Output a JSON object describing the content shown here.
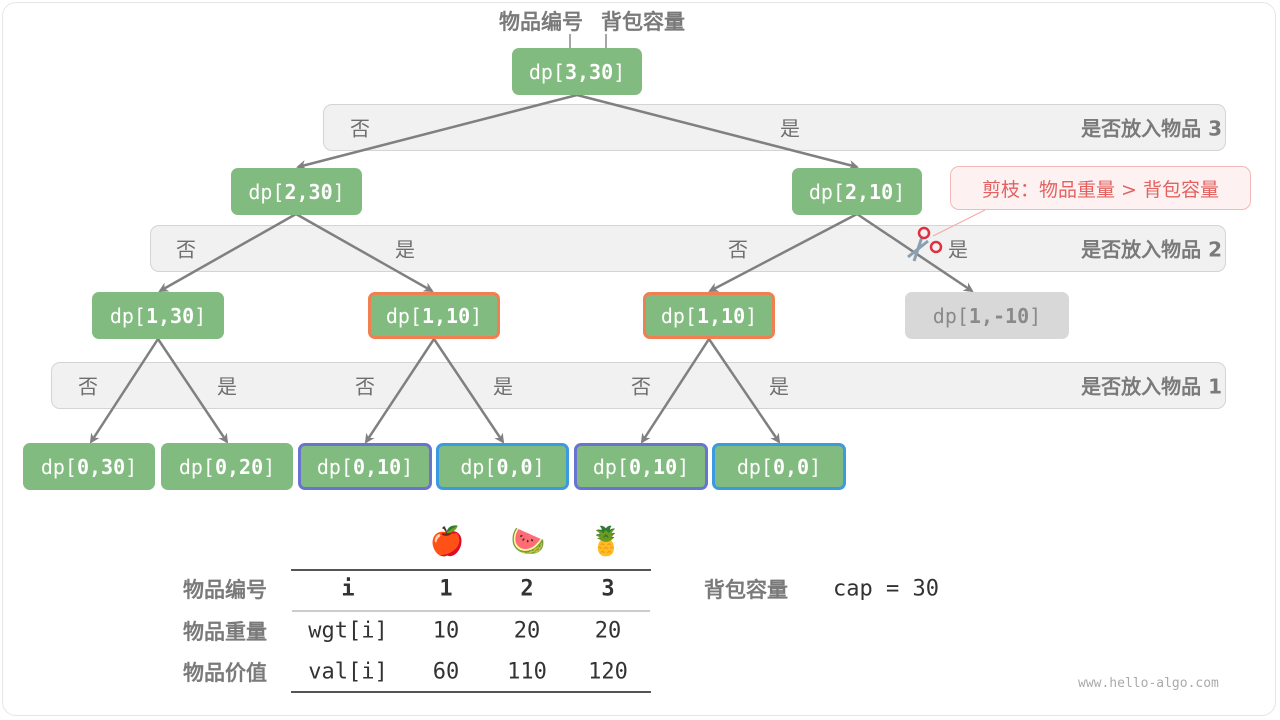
{
  "header": {
    "item_label": "物品编号",
    "capacity_label": "背包容量"
  },
  "bands": [
    {
      "title": "是否放入物品 3",
      "labels": [
        "否",
        "是"
      ]
    },
    {
      "title": "是否放入物品 2",
      "labels": [
        "否",
        "是",
        "否",
        "是"
      ]
    },
    {
      "title": "是否放入物品 1",
      "labels": [
        "否",
        "是",
        "否",
        "是",
        "否",
        "是"
      ]
    }
  ],
  "nodes": {
    "root": {
      "pre": "dp[",
      "idx": "3,30",
      "post": "]"
    },
    "l1": [
      {
        "pre": "dp[",
        "idx": "2,30",
        "post": "]"
      },
      {
        "pre": "dp[",
        "idx": "2,10",
        "post": "]"
      }
    ],
    "l2": [
      {
        "pre": "dp[",
        "idx": "1,30",
        "post": "]"
      },
      {
        "pre": "dp[",
        "idx": "1,10",
        "post": "]"
      },
      {
        "pre": "dp[",
        "idx": "1,10",
        "post": "]"
      },
      {
        "pre": "dp[",
        "idx": "1,-10",
        "post": "]"
      }
    ],
    "l3": [
      {
        "pre": "dp[",
        "idx": "0,30",
        "post": "]"
      },
      {
        "pre": "dp[",
        "idx": "0,20",
        "post": "]"
      },
      {
        "pre": "dp[",
        "idx": "0,10",
        "post": "]"
      },
      {
        "pre": "dp[",
        "idx": "0,0",
        "post": "]"
      },
      {
        "pre": "dp[",
        "idx": "0,10",
        "post": "]"
      },
      {
        "pre": "dp[",
        "idx": "0,0",
        "post": "]"
      }
    ]
  },
  "callout": {
    "text": "剪枝：物品重量 > 背包容量",
    "icon": "scissors-icon"
  },
  "colors": {
    "node": "#82bb7f",
    "repeat_orange": "#f07f52",
    "repeat_purple": "#6b73d1",
    "repeat_blue": "#3b9ae0",
    "pruned": "#d8d8d8",
    "callout_text": "#e46161"
  },
  "table": {
    "fruits": [
      "🍎",
      "🍉",
      "🍍"
    ],
    "row_labels": [
      "物品编号",
      "物品重量",
      "物品价值"
    ],
    "rows": [
      [
        "i",
        "1",
        "2",
        "3"
      ],
      [
        "wgt[i]",
        "10",
        "20",
        "20"
      ],
      [
        "val[i]",
        "60",
        "110",
        "120"
      ]
    ]
  },
  "capacity": {
    "label": "背包容量",
    "value": "cap = 30"
  },
  "watermark": "www.hello-algo.com"
}
